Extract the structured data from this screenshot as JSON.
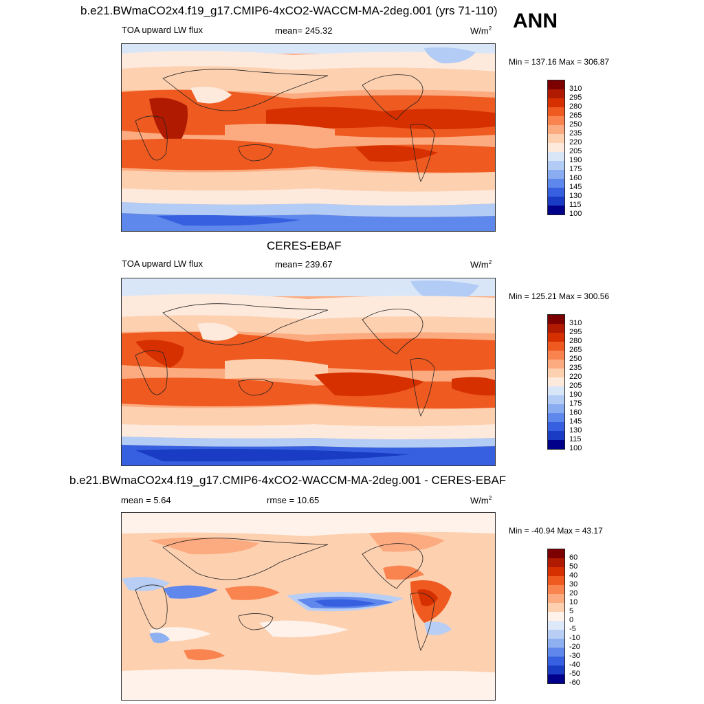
{
  "header": {
    "model_title": "b.e21.BWmaCO2x4.f19_g17.CMIP6-4xCO2-WACCM-MA-2deg.001 (yrs 71-110)",
    "season": "ANN"
  },
  "panels": [
    {
      "id": "model",
      "left_label": "TOA upward LW flux",
      "center_label": "mean= 245.32",
      "units": "W/m",
      "units_sup": "2",
      "minmax": "Min = 137.16 Max = 306.87",
      "colorbar_labels": [
        "310",
        "295",
        "280",
        "265",
        "250",
        "235",
        "220",
        "205",
        "190",
        "175",
        "160",
        "145",
        "130",
        "115",
        "100"
      ]
    },
    {
      "id": "obs",
      "title": "CERES-EBAF",
      "left_label": "TOA upward LW flux",
      "center_label": "mean= 239.67",
      "units": "W/m",
      "units_sup": "2",
      "minmax": "Min = 125.21 Max = 300.56",
      "colorbar_labels": [
        "310",
        "295",
        "280",
        "265",
        "250",
        "235",
        "220",
        "205",
        "190",
        "175",
        "160",
        "145",
        "130",
        "115",
        "100"
      ]
    },
    {
      "id": "diff",
      "title": "b.e21.BWmaCO2x4.f19_g17.CMIP6-4xCO2-WACCM-MA-2deg.001 - CERES-EBAF",
      "left_label": "mean =   5.64",
      "center_label": "rmse =  10.65",
      "units": "W/m",
      "units_sup": "2",
      "minmax": "Min = -40.94 Max =  43.17",
      "colorbar_labels": [
        "60",
        "50",
        "40",
        "30",
        "20",
        "10",
        "5",
        "0",
        "-5",
        "-10",
        "-20",
        "-30",
        "-40",
        "-50",
        "-60"
      ]
    }
  ],
  "colors": {
    "abs_scale": [
      "#7d0000",
      "#b01a00",
      "#d63000",
      "#ee5a20",
      "#f98450",
      "#fcab80",
      "#fdd0b0",
      "#fdeadc",
      "#d9e6f8",
      "#b3ccf5",
      "#8aacf0",
      "#5f88ec",
      "#3760e0",
      "#1a3cc4",
      "#00008a"
    ],
    "diff_scale": [
      "#7d0000",
      "#b01a00",
      "#d63000",
      "#ee5a20",
      "#f98450",
      "#fcab80",
      "#fdd0b0",
      "#fef2ea",
      "#dde8f8",
      "#b8cef5",
      "#8fb0f0",
      "#6088ec",
      "#3760e0",
      "#1a3cc4",
      "#00008a"
    ]
  }
}
